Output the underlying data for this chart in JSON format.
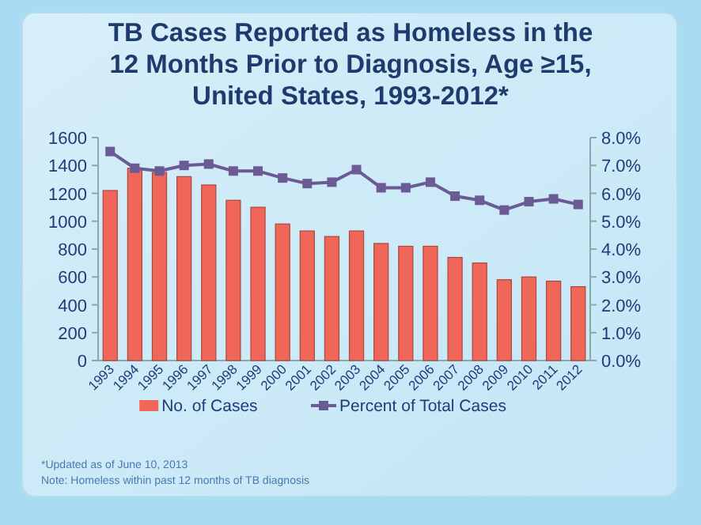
{
  "chart_data": {
    "type": "bar",
    "title": "TB Cases Reported as Homeless in the 12 Months Prior to Diagnosis, Age ≥15, United States, 1993-2012*",
    "categories": [
      "1993",
      "1994",
      "1995",
      "1996",
      "1997",
      "1998",
      "1999",
      "2000",
      "2001",
      "2002",
      "2003",
      "2004",
      "2005",
      "2006",
      "2007",
      "2008",
      "2009",
      "2010",
      "2011",
      "2012"
    ],
    "series": [
      {
        "name": "No. of Cases",
        "color": "#f0675a",
        "values": [
          1220,
          1380,
          1350,
          1320,
          1260,
          1150,
          1100,
          980,
          930,
          890,
          930,
          840,
          820,
          820,
          740,
          700,
          580,
          600,
          570,
          530
        ]
      },
      {
        "name": "Percent of Total Cases",
        "type": "line",
        "axis": "y2",
        "color": "#6b5b95",
        "marker": "square",
        "values": [
          7.5,
          6.9,
          6.8,
          7.0,
          7.05,
          6.8,
          6.8,
          6.55,
          6.35,
          6.4,
          6.85,
          6.2,
          6.2,
          6.4,
          5.9,
          5.75,
          5.4,
          5.7,
          5.8,
          5.6
        ]
      }
    ],
    "ylim": [
      0,
      1600
    ],
    "yticks": [
      0,
      200,
      400,
      600,
      800,
      1000,
      1200,
      1400,
      1600
    ],
    "y2lim": [
      0,
      8
    ],
    "y2ticks": [
      {
        "value": 0,
        "label": "0.0%"
      },
      {
        "value": 1,
        "label": "1.0%"
      },
      {
        "value": 2,
        "label": "2.0%"
      },
      {
        "value": 3,
        "label": "3.0%"
      },
      {
        "value": 4,
        "label": "4.0%"
      },
      {
        "value": 5,
        "label": "5.0%"
      },
      {
        "value": 6,
        "label": "6.0%"
      },
      {
        "value": 7,
        "label": "7.0%"
      },
      {
        "value": 8,
        "label": "8.0%"
      }
    ],
    "legend": "bottom",
    "annotations": [
      "*Updated as of June 10, 2013",
      "Note: Homeless within past 12 months of TB diagnosis"
    ]
  }
}
